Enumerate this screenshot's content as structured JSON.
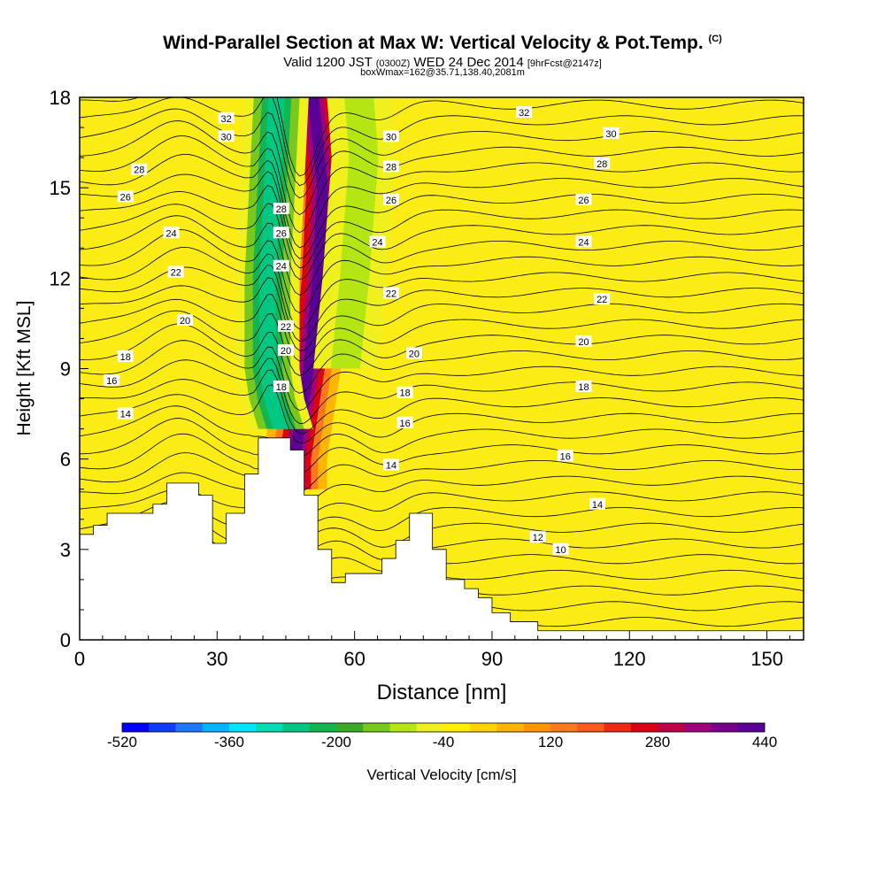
{
  "header": {
    "title": "Wind-Parallel Section at Max W: Vertical Velocity & Pot.Temp.",
    "copyright": "(C)",
    "valid_label": "Valid 1200 JST",
    "valid_utc": "(0300Z)",
    "valid_date": "WED 24 Dec 2014",
    "forecast": "[9hrFcst@2147z]",
    "box_info": "boxWmax=162@35.71,138.40,2081m"
  },
  "chart_data": {
    "type": "heatmap",
    "xlabel": "Distance [nm]",
    "ylabel": "Height [Kft MSL]",
    "xlim": [
      0,
      158
    ],
    "ylim": [
      0,
      18
    ],
    "x_ticks": [
      0,
      30,
      60,
      90,
      120,
      150
    ],
    "y_ticks": [
      0,
      3,
      6,
      9,
      12,
      15,
      18
    ],
    "colorbar": {
      "label": "Vertical Velocity [cm/s]",
      "range": [
        -520,
        440
      ],
      "tick_labels": [
        "-520",
        "-360",
        "-200",
        "-40",
        "120",
        "280",
        "440"
      ],
      "colors": [
        "#0000ff",
        "#0f3cff",
        "#1e78ff",
        "#00b4ff",
        "#00e6ff",
        "#00dcb4",
        "#00c882",
        "#14b450",
        "#3caa28",
        "#78c81e",
        "#b4e614",
        "#f0f01e",
        "#fff000",
        "#ffd200",
        "#ffb400",
        "#ff9600",
        "#ff781e",
        "#ff5a1e",
        "#f02814",
        "#dc0014",
        "#be0046",
        "#a00078",
        "#78008c",
        "#5a0096"
      ]
    },
    "terrain_kft": {
      "x": [
        0,
        3,
        3,
        6,
        6,
        16,
        16,
        19,
        19,
        26,
        26,
        29,
        29,
        32,
        32,
        36,
        36,
        39,
        39,
        42,
        42,
        46,
        46,
        49,
        49,
        52,
        52,
        55,
        55,
        58,
        58,
        66,
        66,
        69,
        69,
        72,
        72,
        77,
        77,
        80,
        80,
        84,
        84,
        87,
        87,
        90,
        90,
        94,
        94,
        97,
        97,
        100,
        100,
        104,
        104,
        158
      ],
      "y": [
        3.5,
        3.5,
        3.8,
        3.8,
        4.2,
        4.2,
        4.5,
        4.5,
        5.2,
        5.2,
        4.8,
        4.8,
        3.2,
        3.2,
        4.2,
        4.2,
        5.5,
        5.5,
        6.7,
        6.7,
        6.7,
        6.7,
        6.3,
        6.3,
        4.8,
        4.8,
        3.0,
        3.0,
        1.9,
        1.9,
        2.2,
        2.2,
        2.7,
        2.7,
        3.3,
        3.3,
        4.2,
        4.2,
        3.0,
        3.0,
        2.0,
        2.0,
        1.7,
        1.7,
        1.4,
        1.4,
        0.9,
        0.9,
        0.6,
        0.6,
        0.6,
        0.6,
        0.3,
        0.3,
        0.3,
        0.3
      ]
    },
    "w_features": [
      {
        "name": "updraft",
        "x": [
          51,
          53,
          52,
          50,
          48,
          47,
          47
        ],
        "y": [
          18,
          15,
          12,
          9,
          7,
          6,
          5
        ],
        "w": 440
      },
      {
        "name": "downdraft-west",
        "x": [
          43,
          42,
          41,
          41,
          42,
          44
        ],
        "y": [
          18,
          15,
          12,
          9,
          8,
          7
        ],
        "w": -280
      },
      {
        "name": "downdraft-east",
        "x": [
          61,
          62,
          60,
          58
        ],
        "y": [
          18,
          16,
          12,
          9
        ],
        "w": -120
      }
    ],
    "theta_contour_labels": [
      {
        "text": "32",
        "x": 32,
        "y": 17.3
      },
      {
        "text": "30",
        "x": 32,
        "y": 16.7
      },
      {
        "text": "28",
        "x": 13,
        "y": 15.6
      },
      {
        "text": "26",
        "x": 10,
        "y": 14.7
      },
      {
        "text": "24",
        "x": 20,
        "y": 13.5
      },
      {
        "text": "22",
        "x": 21,
        "y": 12.2
      },
      {
        "text": "20",
        "x": 23,
        "y": 10.6
      },
      {
        "text": "18",
        "x": 10,
        "y": 9.4
      },
      {
        "text": "16",
        "x": 7,
        "y": 8.6
      },
      {
        "text": "14",
        "x": 10,
        "y": 7.5
      },
      {
        "text": "28",
        "x": 44,
        "y": 14.3
      },
      {
        "text": "26",
        "x": 44,
        "y": 13.5
      },
      {
        "text": "24",
        "x": 44,
        "y": 12.4
      },
      {
        "text": "22",
        "x": 45,
        "y": 10.4
      },
      {
        "text": "20",
        "x": 45,
        "y": 9.6
      },
      {
        "text": "18",
        "x": 44,
        "y": 8.4
      },
      {
        "text": "30",
        "x": 68,
        "y": 16.7
      },
      {
        "text": "28",
        "x": 68,
        "y": 15.7
      },
      {
        "text": "26",
        "x": 68,
        "y": 14.6
      },
      {
        "text": "24",
        "x": 65,
        "y": 13.2
      },
      {
        "text": "22",
        "x": 68,
        "y": 11.5
      },
      {
        "text": "20",
        "x": 73,
        "y": 9.5
      },
      {
        "text": "18",
        "x": 71,
        "y": 8.2
      },
      {
        "text": "16",
        "x": 71,
        "y": 7.2
      },
      {
        "text": "14",
        "x": 68,
        "y": 5.8
      },
      {
        "text": "32",
        "x": 97,
        "y": 17.5
      },
      {
        "text": "30",
        "x": 116,
        "y": 16.8
      },
      {
        "text": "28",
        "x": 114,
        "y": 15.8
      },
      {
        "text": "26",
        "x": 110,
        "y": 14.6
      },
      {
        "text": "24",
        "x": 110,
        "y": 13.2
      },
      {
        "text": "22",
        "x": 114,
        "y": 11.3
      },
      {
        "text": "20",
        "x": 110,
        "y": 9.9
      },
      {
        "text": "18",
        "x": 110,
        "y": 8.4
      },
      {
        "text": "16",
        "x": 106,
        "y": 6.1
      },
      {
        "text": "14",
        "x": 113,
        "y": 4.5
      },
      {
        "text": "12",
        "x": 100,
        "y": 3.4
      },
      {
        "text": "10",
        "x": 105,
        "y": 3.0
      }
    ]
  }
}
